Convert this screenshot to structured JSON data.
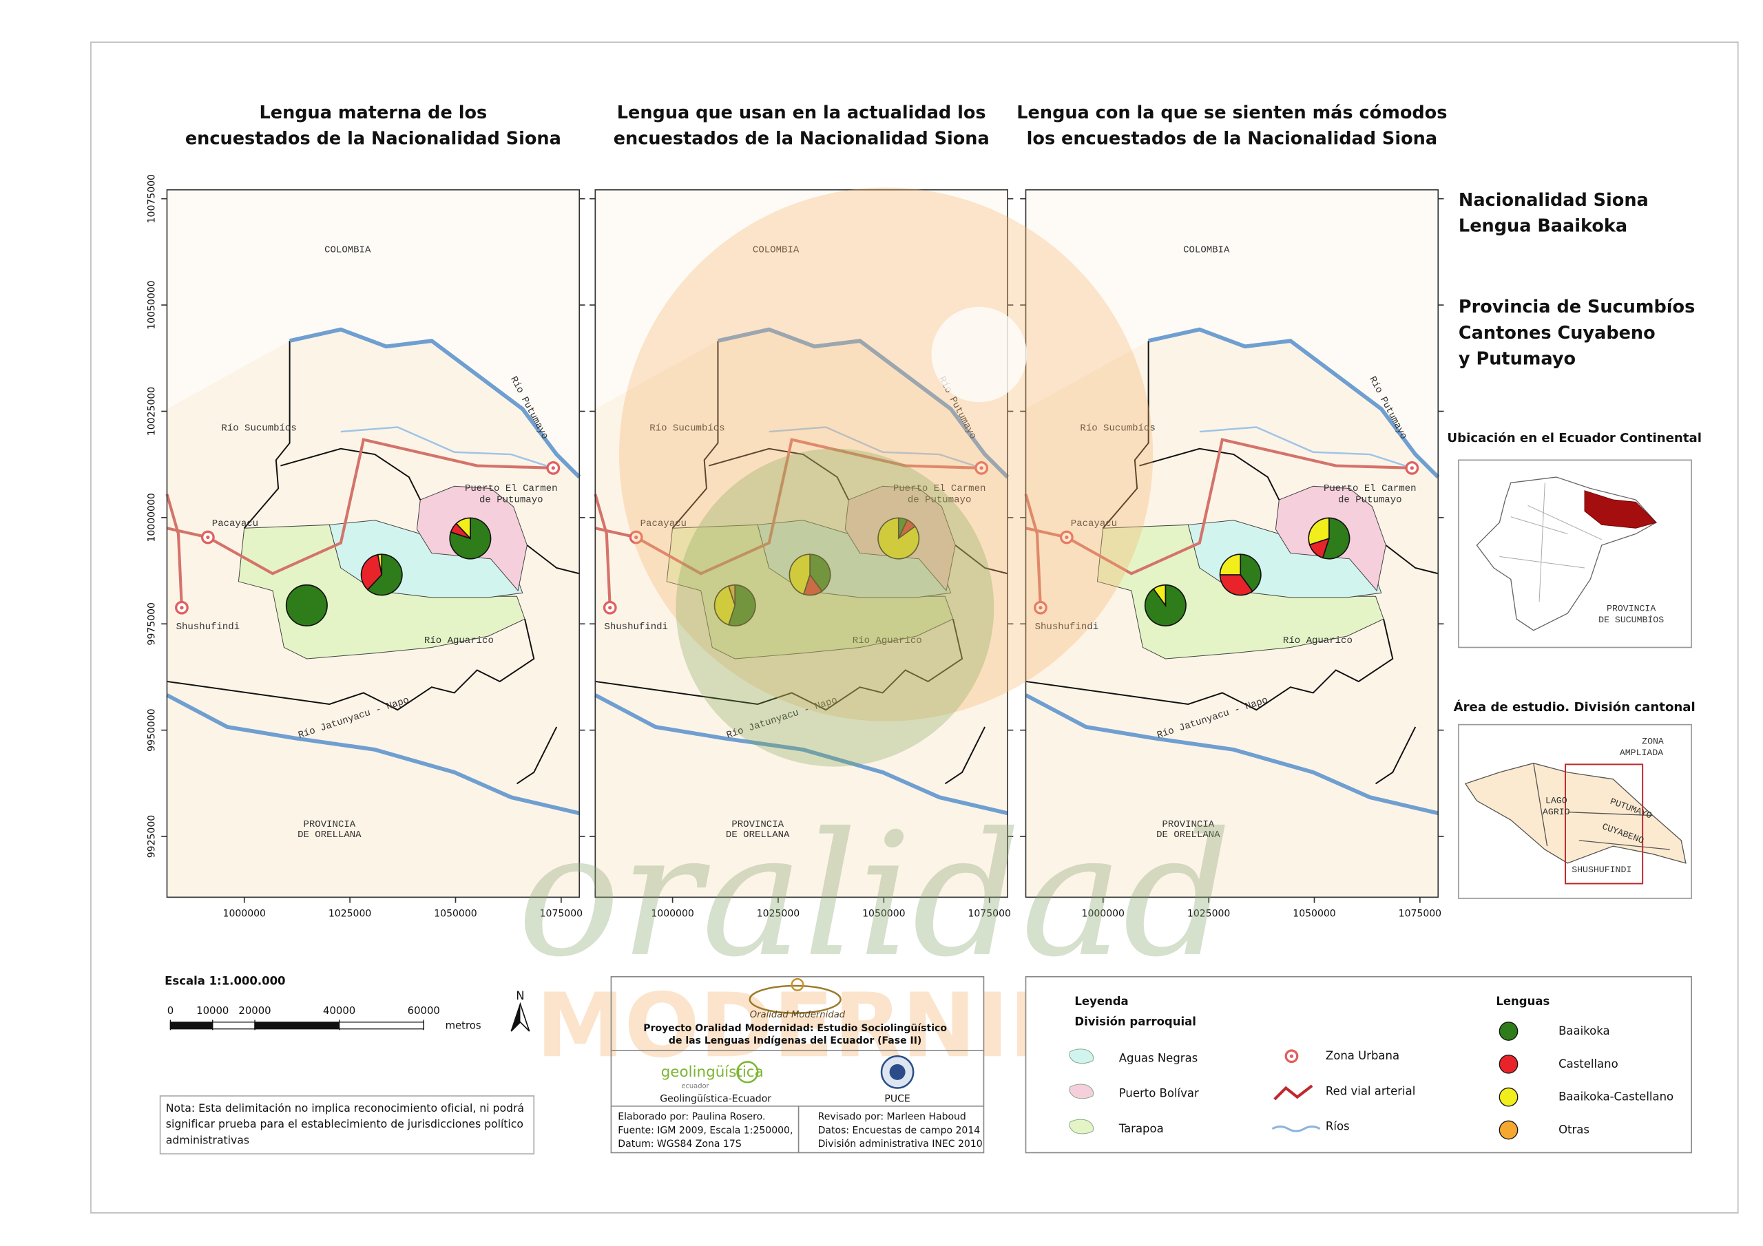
{
  "maps": [
    {
      "title": [
        "Lengua materna de los",
        "encuestados de la Nacionalidad Siona"
      ],
      "pies": [
        [
          100,
          0,
          0,
          0
        ],
        [
          62,
          35,
          3,
          0
        ],
        [
          80,
          8,
          12,
          0
        ]
      ]
    },
    {
      "title": [
        "Lengua que usan en la actualidad los",
        "encuestados de la Nacionalidad Siona"
      ],
      "pies": [
        [
          55,
          0,
          40,
          5
        ],
        [
          40,
          15,
          45,
          0
        ],
        [
          7,
          8,
          85,
          0
        ]
      ]
    },
    {
      "title": [
        "Lengua con la que se sienten más cómodos",
        "los encuestados de la Nacionalidad Siona"
      ],
      "pies": [
        [
          90,
          0,
          10,
          0
        ],
        [
          40,
          35,
          25,
          0
        ],
        [
          55,
          15,
          30,
          0
        ]
      ]
    }
  ],
  "map_labels": [
    "COLOMBIA",
    "Río Sucumbíos",
    "Río Putumayo",
    "Puerto El Carmen",
    "de Putumayo",
    "Pacayacu",
    "Shushufindi",
    "Río Aguarico",
    "Río Jatunyacu - Napo",
    "PROVINCIA",
    "DE ORELLANA"
  ],
  "axes": {
    "xlim": [
      981700,
      1079300
    ],
    "ylim": [
      9910700,
      10077100
    ],
    "xticks": [
      1000000,
      1025000,
      1050000,
      1075000
    ],
    "yticks": [
      10075000,
      10050000,
      10025000,
      10000000,
      9975000,
      9950000,
      9925000
    ]
  },
  "side": {
    "heading1": [
      "Nacionalidad Siona",
      "Lengua Baaikoka"
    ],
    "heading2": [
      "Provincia de Sucumbíos",
      "Cantones Cuyabeno",
      "y Putumayo"
    ],
    "inset1": {
      "title": "Ubicación en el Ecuador Continental",
      "labels": [
        "PROVINCIA",
        "DE SUCUMBÍOS"
      ]
    },
    "inset2": {
      "title": "Área de estudio. División cantonal",
      "labels": [
        "ZONA",
        "AMPLIADA",
        "LAGO",
        "AGRIO",
        "PUTUMAYO",
        "CUYABENO",
        "SHUSHUFINDI"
      ]
    }
  },
  "scale": {
    "title": "Escala 1:1.000.000",
    "ticks": [
      0,
      10000,
      20000,
      40000,
      60000
    ],
    "unit": "metros",
    "north": "N"
  },
  "note": [
    "Nota: Esta delimitación no implica reconocimiento oficial, ni podrá",
    "significar prueba para el establecimiento de jurisdicciones político",
    "administrativas"
  ],
  "credits": {
    "logo": "Oralidad Modernidad",
    "project": [
      "Proyecto Oralidad Modernidad: Estudio Sociolingüístico",
      "de las Lenguas Indígenas del Ecuador  (Fase II)"
    ],
    "logo_geo": [
      "geolingüística",
      "ecuador"
    ],
    "geo": "Geolingüística-Ecuador",
    "puce": "PUCE",
    "left": [
      "Elaborado por: Paulina Rosero.",
      "Fuente: IGM 2009, Escala 1:250000,",
      "Datum: WGS84 Zona 17S"
    ],
    "right": [
      "Revisado por: Marleen Haboud",
      "Datos: Encuestas de campo 2014",
      "División administrativa INEC 2010"
    ]
  },
  "legend": {
    "title": "Leyenda",
    "subtitle": "División parroquial",
    "parishes": [
      {
        "name": "Aguas Negras",
        "color": "#d2f4ee"
      },
      {
        "name": "Puerto Bolívar",
        "color": "#f6cfdc"
      },
      {
        "name": "Tarapoa",
        "color": "#e4f4c6"
      }
    ],
    "features": [
      "Zona Urbana",
      "Red vial arterial",
      "Ríos"
    ],
    "languages_title": "Lenguas",
    "languages": [
      {
        "name": "Baaikoka",
        "color": "#2e7d1a"
      },
      {
        "name": "Castellano",
        "color": "#e8242a"
      },
      {
        "name": "Baaikoka-Castellano",
        "color": "#f2ee1c"
      },
      {
        "name": "Otras",
        "color": "#f4a830"
      }
    ]
  },
  "watermark": [
    "oralidad",
    "MODERNIDAD"
  ]
}
